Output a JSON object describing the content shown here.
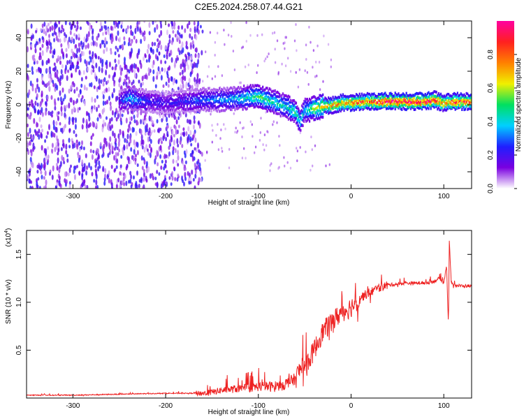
{
  "title": "C2E5.2024.258.07.44.G21",
  "chart_data": [
    {
      "type": "heatmap",
      "title": "C2E5.2024.258.07.44.G21",
      "xlabel": "Height of straight line (km)",
      "ylabel": "Frequency (Hz)",
      "xlim": [
        -350,
        130
      ],
      "ylim": [
        -50,
        50
      ],
      "xticks": [
        "-300",
        "-200",
        "-100",
        "0",
        "100"
      ],
      "yticks": [
        "-40",
        "-20",
        "0",
        "20",
        "40"
      ],
      "colorbar": {
        "label": "Normalized spectral amplitude",
        "range": [
          0.0,
          1.0
        ],
        "ticks": [
          "0.0",
          "0.2",
          "0.4",
          "0.6",
          "0.8"
        ],
        "stops": [
          "#ffffff",
          "#7a00e0",
          "#1f1fff",
          "#00d0ff",
          "#00e060",
          "#f0f000",
          "#ff8000",
          "#ff2020",
          "#ff00a0"
        ]
      },
      "ridge": {
        "x": [
          -250,
          -240,
          -220,
          -200,
          -180,
          -160,
          -140,
          -120,
          -100,
          -90,
          -80,
          -70,
          -60,
          -55,
          -50,
          -45,
          -40,
          -30,
          -20,
          -10,
          0,
          20,
          40,
          60,
          80,
          90,
          100,
          110,
          120,
          130
        ],
        "freq": [
          2,
          4,
          2,
          1,
          2,
          3,
          3,
          4,
          5,
          3,
          1,
          -1,
          -4,
          -10,
          -3,
          -3,
          -2,
          -1,
          0,
          1,
          1.5,
          2,
          2,
          2,
          2,
          3,
          1,
          2,
          2,
          2
        ],
        "amplitude": [
          0.2,
          0.4,
          0.25,
          0.2,
          0.25,
          0.3,
          0.35,
          0.4,
          0.55,
          0.5,
          0.45,
          0.45,
          0.5,
          0.45,
          0.4,
          0.5,
          0.6,
          0.7,
          0.75,
          0.8,
          0.85,
          0.9,
          0.95,
          0.95,
          0.95,
          0.9,
          0.8,
          0.9,
          0.9,
          0.9
        ]
      },
      "noise_region": [
        -350,
        -160
      ]
    },
    {
      "type": "line",
      "title": "",
      "xlabel": "Height of straight line (km)",
      "ylabel": "SNR (10 * v/v)",
      "scale_label": "(x10",
      "scale_exponent": "4",
      "xlim": [
        -350,
        130
      ],
      "ylim": [
        0,
        1.75
      ],
      "xticks": [
        "-300",
        "-200",
        "-100",
        "0",
        "100"
      ],
      "yticks": [
        "0.5",
        "1.0",
        "1.5"
      ],
      "color": "#ee2222",
      "series": [
        {
          "name": "SNR",
          "x": [
            -350,
            -300,
            -250,
            -200,
            -180,
            -160,
            -150,
            -140,
            -120,
            -100,
            -80,
            -70,
            -60,
            -55,
            -50,
            -45,
            -40,
            -35,
            -30,
            -25,
            -20,
            -15,
            -10,
            -5,
            0,
            5,
            10,
            20,
            30,
            40,
            60,
            80,
            90,
            95,
            100,
            103,
            105,
            106,
            108,
            110,
            120,
            130
          ],
          "y": [
            0.03,
            0.03,
            0.04,
            0.05,
            0.05,
            0.05,
            0.06,
            0.08,
            0.1,
            0.12,
            0.12,
            0.15,
            0.2,
            0.3,
            0.35,
            0.4,
            0.5,
            0.6,
            0.7,
            0.75,
            0.8,
            0.85,
            0.9,
            0.92,
            0.95,
            1.0,
            1.05,
            1.1,
            1.15,
            1.18,
            1.2,
            1.2,
            1.22,
            1.25,
            1.2,
            1.4,
            0.75,
            1.65,
            1.2,
            1.18,
            1.17,
            1.17
          ]
        }
      ]
    }
  ]
}
